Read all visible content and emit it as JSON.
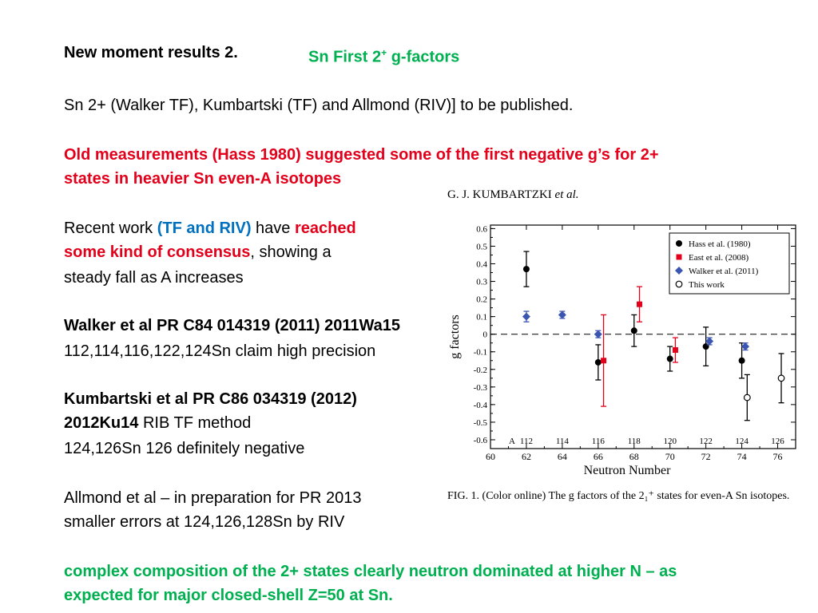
{
  "slide": {
    "title_left": "New moment results 2.",
    "title_right_pre": "Sn  First 2",
    "title_right_sup": "+",
    "title_right_post": " g-factors",
    "line_pub": "Sn 2+ (Walker TF), Kumbartski (TF) and Allmond (RIV)] to be published.",
    "old_1": "Old measurements (Hass 1980) suggested some of the first negative g’s for 2+",
    "old_2": "states in heavier Sn even-A isotopes",
    "recent_a": "Recent work ",
    "recent_b": "(TF and RIV)",
    "recent_c": "  have ",
    "recent_d": "reached",
    "consensus_a": "some kind of consensus",
    "consensus_b": ", showing a",
    "steady": "steady fall as A increases",
    "walker_ref": "Walker et al PR C84 014319 (2011) 2011Wa15",
    "walker_iso": "112,114,116,122,124Sn claim high precision",
    "kum_ref": "Kumbartski et al PR C86 034319 (2012)",
    "kum_code": "2012Ku14",
    "kum_method": " RIB TF method",
    "kum_iso": "124,126Sn 126 definitely negative",
    "allmond_1": "Allmond et al – in preparation for PR 2013",
    "allmond_2": "smaller errors at 124,126,128Sn by RIV",
    "complex_1": "complex composition of the 2+ states clearly neutron dominated at higher N – as",
    "complex_2": "expected for major closed-shell  Z=50 at Sn."
  },
  "figure": {
    "header_pre": "G. J. KUMBARTZKI ",
    "header_em": "et al.",
    "caption": "FIG. 1. (Color online) The g factors of the 2₁⁺ states for even-A Sn isotopes."
  },
  "chart_data": {
    "type": "scatter",
    "xlabel": "Neutron Number",
    "ylabel": "g factors",
    "xlim": [
      60,
      77
    ],
    "ylim": [
      -0.65,
      0.62
    ],
    "xticks": [
      60,
      62,
      64,
      66,
      68,
      70,
      72,
      74,
      76
    ],
    "yticks": [
      -0.6,
      -0.5,
      -0.4,
      -0.3,
      -0.2,
      -0.1,
      0,
      0.1,
      0.2,
      0.3,
      0.4,
      0.5,
      0.6
    ],
    "mass_label": "A",
    "mass_numbers": [
      {
        "n": 62,
        "a": "112"
      },
      {
        "n": 64,
        "a": "114"
      },
      {
        "n": 66,
        "a": "116"
      },
      {
        "n": 68,
        "a": "118"
      },
      {
        "n": 70,
        "a": "120"
      },
      {
        "n": 72,
        "a": "122"
      },
      {
        "n": 74,
        "a": "124"
      },
      {
        "n": 76,
        "a": "126"
      }
    ],
    "legend_position": "top-right",
    "series": [
      {
        "name": "Hass et al. (1980)",
        "marker": "filled-circle",
        "color": "#000000",
        "points": [
          {
            "x": 62,
            "y": 0.37,
            "err": 0.1
          },
          {
            "x": 66,
            "y": -0.16,
            "err": 0.1
          },
          {
            "x": 68,
            "y": 0.02,
            "err": 0.09
          },
          {
            "x": 70,
            "y": -0.14,
            "err": 0.07
          },
          {
            "x": 72,
            "y": -0.07,
            "err": 0.11
          },
          {
            "x": 74,
            "y": -0.15,
            "err": 0.1
          }
        ]
      },
      {
        "name": "East et al. (2008)",
        "marker": "filled-square",
        "color": "#e3001b",
        "points": [
          {
            "x": 66.3,
            "y": -0.15,
            "err": 0.26
          },
          {
            "x": 68.3,
            "y": 0.17,
            "err": 0.1
          },
          {
            "x": 70.3,
            "y": -0.09,
            "err": 0.07
          }
        ]
      },
      {
        "name": "Walker et al. (2011)",
        "marker": "filled-diamond",
        "color": "#3a56b0",
        "points": [
          {
            "x": 62,
            "y": 0.1,
            "err": 0.03
          },
          {
            "x": 64,
            "y": 0.11,
            "err": 0.02
          },
          {
            "x": 66,
            "y": 0.0,
            "err": 0.02
          },
          {
            "x": 72.2,
            "y": -0.04,
            "err": 0.02
          },
          {
            "x": 74.2,
            "y": -0.07,
            "err": 0.02
          }
        ]
      },
      {
        "name": "This work",
        "marker": "open-circle",
        "color": "#000000",
        "points": [
          {
            "x": 74.3,
            "y": -0.36,
            "err": 0.13
          },
          {
            "x": 76.2,
            "y": -0.25,
            "err": 0.14
          }
        ]
      }
    ]
  }
}
